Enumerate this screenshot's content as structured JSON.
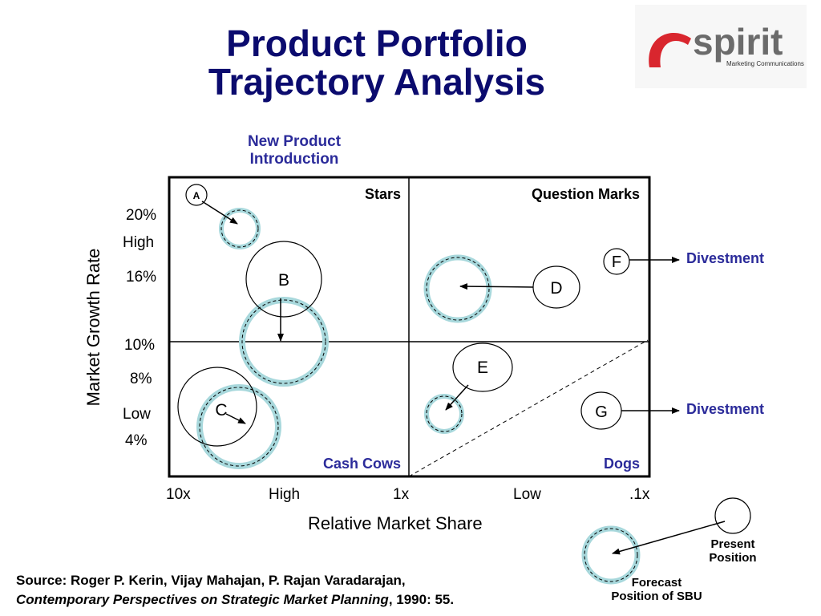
{
  "title_line1": "Product Portfolio",
  "title_line2": "Trajectory Analysis",
  "logo": {
    "text": "spirit",
    "subtext": "Marketing Communications"
  },
  "new_product_line1": "New Product",
  "new_product_line2": "Introduction",
  "y_axis": {
    "label": "Market Growth Rate",
    "ticks": [
      "20%",
      "High",
      "16%",
      "10%",
      "8%",
      "Low",
      "4%"
    ]
  },
  "x_axis": {
    "label": "Relative Market Share",
    "ticks": [
      "10x",
      "High",
      "1x",
      "Low",
      ".1x"
    ]
  },
  "quadrants": {
    "stars": "Stars",
    "question_marks": "Question Marks",
    "cash_cows": "Cash Cows",
    "dogs": "Dogs"
  },
  "sbus": [
    "A",
    "B",
    "C",
    "D",
    "E",
    "F",
    "G"
  ],
  "divestment": "Divestment",
  "legend": {
    "present_line1": "Present",
    "present_line2": "Position",
    "forecast_line1": "Forecast",
    "forecast_line2": "Position of SBU"
  },
  "source": {
    "line1": "Source: Roger P. Kerin, Vijay Mahajan, P. Rajan Varadarajan,",
    "book": "Contemporary Perspectives on Strategic Market Planning",
    "year": ", 1990: 55."
  },
  "colors": {
    "title": "#0b0b6e",
    "label": "#2b2b9a",
    "forecast_fill": "#a8d8dc",
    "logo_red": "#d9262e",
    "logo_gray": "#6b6b6b"
  }
}
